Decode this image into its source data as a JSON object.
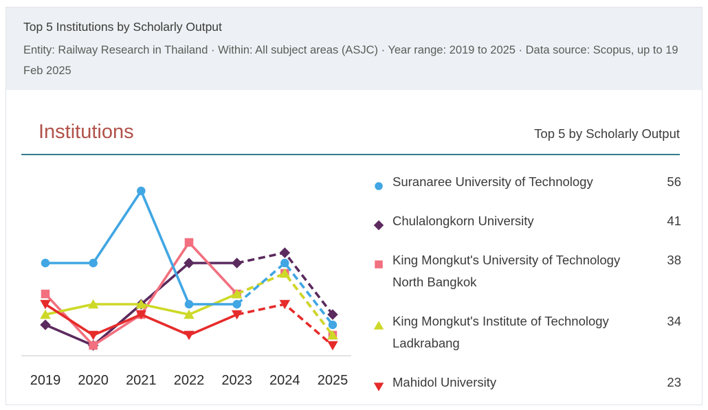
{
  "header": {
    "title": "Top 5 Institutions by Scholarly Output",
    "criteria": "Entity: Railway Research in Thailand  ·  Within: All subject areas (ASJC)  ·  Year range: 2019 to 2025  ·  Data source: Scopus, up to 19 Feb 2025"
  },
  "card": {
    "section_title": "Institutions",
    "section_subtitle": "Top 5 by Scholarly Output"
  },
  "colors": {
    "section_title_accent": "#b1524a",
    "divider_teal": "#337e8d",
    "header_band_bg": "#edf1f6",
    "axis_line": "#e2e2e2",
    "axis_label_text": "#2b2b2b"
  },
  "chart_data": {
    "type": "line",
    "title": "Top 5 Institutions by Scholarly Output",
    "x": [
      "2019",
      "2020",
      "2021",
      "2022",
      "2023",
      "2024",
      "2025"
    ],
    "xlabel": "",
    "ylabel": "Scholarly Output",
    "ylim": [
      0,
      17
    ],
    "grid": false,
    "legend_position": "right",
    "dashed_from_index": 4,
    "dashed_note": "segments from 2023 onward are dashed (incomplete years)",
    "series": [
      {
        "name": "Suranaree University of Technology",
        "total": 56,
        "color": "#41a6e3",
        "marker": "circle",
        "values": [
          9,
          9,
          16,
          5,
          5,
          9,
          3
        ]
      },
      {
        "name": "Chulalongkorn University",
        "total": 41,
        "color": "#5b2a5e",
        "marker": "diamond",
        "values": [
          3,
          1,
          5,
          9,
          9,
          10,
          4
        ]
      },
      {
        "name": "King Mongkut's University of Technology North Bangkok",
        "total": 38,
        "color": "#f2707f",
        "marker": "square",
        "values": [
          6,
          1,
          4,
          11,
          6,
          8,
          2
        ]
      },
      {
        "name": "King Mongkut's Institute of Technology Ladkrabang",
        "total": 34,
        "color": "#cdd926",
        "marker": "triangle-up",
        "values": [
          4,
          5,
          5,
          4,
          6,
          8,
          2
        ]
      },
      {
        "name": "Mahidol University",
        "total": 23,
        "color": "#e62b2b",
        "marker": "triangle-down",
        "values": [
          5,
          2,
          4,
          2,
          4,
          5,
          1
        ]
      }
    ]
  }
}
